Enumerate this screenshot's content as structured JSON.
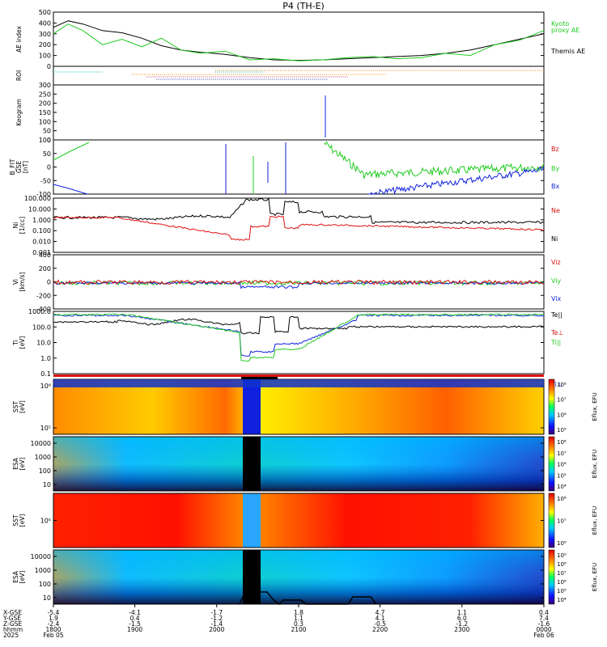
{
  "title": "P4 (TH-E)",
  "colors": {
    "black": "#000000",
    "green": "#22cc22",
    "red": "#dd1111",
    "blue": "#1122dd",
    "orange": "#ff8800",
    "cyan": "#00bbbb"
  },
  "chart_data": {
    "type": "line",
    "panels": [
      {
        "id": "ae",
        "ylabel": "AE index",
        "ylim": [
          0,
          500
        ],
        "yticks": [
          "500",
          "400",
          "300",
          "200",
          "100",
          "0"
        ],
        "legend": [
          {
            "text": "Kyoto",
            "color": "#22cc22"
          },
          {
            "text": "proxy AE",
            "color": "#22cc22"
          },
          {
            "text": "Themis AE",
            "color": "#000000"
          }
        ],
        "series": [
          {
            "name": "Themis AE",
            "color": "#000000",
            "x": [
              0,
              0.03,
              0.06,
              0.1,
              0.14,
              0.18,
              0.22,
              0.26,
              0.3,
              0.35,
              0.4,
              0.45,
              0.5,
              0.55,
              0.6,
              0.65,
              0.7,
              0.75,
              0.8,
              0.85,
              0.9,
              0.95,
              1.0
            ],
            "y": [
              360,
              420,
              390,
              330,
              310,
              260,
              190,
              150,
              130,
              110,
              80,
              60,
              55,
              60,
              70,
              80,
              90,
              100,
              120,
              150,
              200,
              250,
              300
            ]
          },
          {
            "name": "Kyoto proxy AE",
            "color": "#22cc22",
            "x": [
              0,
              0.03,
              0.06,
              0.1,
              0.14,
              0.18,
              0.22,
              0.26,
              0.3,
              0.35,
              0.4,
              0.45,
              0.5,
              0.55,
              0.6,
              0.65,
              0.7,
              0.75,
              0.8,
              0.85,
              0.9,
              0.95,
              1.0
            ],
            "y": [
              300,
              390,
              330,
              200,
              250,
              180,
              260,
              150,
              120,
              140,
              60,
              70,
              50,
              60,
              80,
              90,
              70,
              80,
              120,
              100,
              200,
              240,
              330
            ]
          }
        ]
      },
      {
        "id": "roi",
        "ylabel": "ROI"
      },
      {
        "id": "keogram",
        "ylabel": "Keogram",
        "ylim": [
          0,
          300
        ],
        "yticks": [
          "300",
          "250",
          "200",
          "150",
          "100",
          "50",
          "0"
        ]
      },
      {
        "id": "bfield",
        "ylabel": [
          "B_FIT",
          "GSE",
          "[nT]"
        ],
        "ylim": [
          -100,
          100
        ],
        "yticks": [
          "100",
          "50",
          "0",
          "-50",
          "-100"
        ],
        "legend": [
          {
            "text": "Bz",
            "color": "#dd1111"
          },
          {
            "text": "By",
            "color": "#22cc22"
          },
          {
            "text": "Bx",
            "color": "#1122dd"
          }
        ]
      },
      {
        "id": "density",
        "ylabel": [
          "Ni",
          "[1/cc]"
        ],
        "log": true,
        "yticks": [
          "100.000",
          "10.000",
          "1.000",
          "0.100",
          "0.010",
          "0.001"
        ],
        "legend": [
          {
            "text": "Ne",
            "color": "#dd1111"
          },
          {
            "text": "Ni",
            "color": "#000000"
          }
        ]
      },
      {
        "id": "velocity",
        "ylabel": [
          "Vi",
          "[km/s]"
        ],
        "ylim": [
          -500,
          500
        ],
        "yticks": [
          "400",
          "200",
          "0",
          "-200",
          "-400"
        ],
        "legend": [
          {
            "text": "Viz",
            "color": "#dd1111"
          },
          {
            "text": "Viy",
            "color": "#22cc22"
          },
          {
            "text": "Vix",
            "color": "#1122dd"
          }
        ]
      },
      {
        "id": "temperature",
        "ylabel": [
          "Ti",
          "[eV]"
        ],
        "log": true,
        "yticks": [
          "1000.0",
          "100.0",
          "10.0",
          "1.0",
          "0.1"
        ],
        "legend": [
          {
            "text": "Te||",
            "color": "#000000"
          },
          {
            "text": "Te⊥",
            "color": "#dd1111"
          },
          {
            "text": "Ti||",
            "color": "#22cc22"
          },
          {
            "text": "Ti⊥",
            "color": "#1122dd"
          }
        ]
      },
      {
        "id": "mode_bar"
      },
      {
        "id": "sst_ion",
        "ylabel": [
          "SST",
          "[eV]"
        ],
        "yticks": [
          "10⁶",
          "10⁵"
        ],
        "colorbar": [
          "10⁸",
          "10⁷",
          "10⁶",
          "10⁵"
        ],
        "cb_label": "Eflux, EFU"
      },
      {
        "id": "esa_ion",
        "ylabel": [
          "ESA",
          "[eV]"
        ],
        "yticks": [
          "10000",
          "1000",
          "100",
          "10"
        ],
        "colorbar": [
          "10⁸",
          "10⁷",
          "10⁶",
          "10⁵",
          "10⁴"
        ],
        "cb_label": "Eflux, EFU"
      },
      {
        "id": "sst_elec",
        "ylabel": [
          "SST",
          "[eV]"
        ],
        "yticks": [
          "10⁵"
        ],
        "colorbar": [
          "10⁸",
          "10⁷",
          "10⁶"
        ],
        "cb_label": "Eflux, EFU"
      },
      {
        "id": "esa_elec",
        "ylabel": [
          "ESA",
          "[eV]"
        ],
        "yticks": [
          "10000",
          "1000",
          "100",
          "10"
        ],
        "colorbar": [
          "10⁹",
          "10⁸",
          "10⁷",
          "10⁶",
          "10⁵",
          "10⁴"
        ],
        "cb_label": "Eflux, EFU"
      }
    ],
    "x_axis": {
      "row_labels": [
        "X-GSE",
        "Y-GSE",
        "Z-GSE",
        "hhmm",
        "2025"
      ],
      "ticks": [
        {
          "x": 0.0,
          "values": [
            "-5.4",
            "1.9",
            "-2.4",
            "1800",
            "Feb 05"
          ]
        },
        {
          "x": 0.166,
          "values": [
            "-4.1",
            "0.4",
            "-1.5",
            "1900",
            ""
          ]
        },
        {
          "x": 0.333,
          "values": [
            "-1.7",
            "-1.2",
            "-1.4",
            "2000",
            ""
          ]
        },
        {
          "x": 0.5,
          "values": [
            "1.8",
            "1.1",
            "0.3",
            "2100",
            ""
          ]
        },
        {
          "x": 0.666,
          "values": [
            "4.7",
            "4.1",
            "-0.5",
            "2200",
            ""
          ]
        },
        {
          "x": 0.833,
          "values": [
            "1.1",
            "6.0",
            "-1.2",
            "2300",
            ""
          ]
        },
        {
          "x": 1.0,
          "values": [
            "0.4",
            "7.4",
            "-1.6",
            "0000",
            "Feb 06"
          ]
        }
      ]
    }
  }
}
